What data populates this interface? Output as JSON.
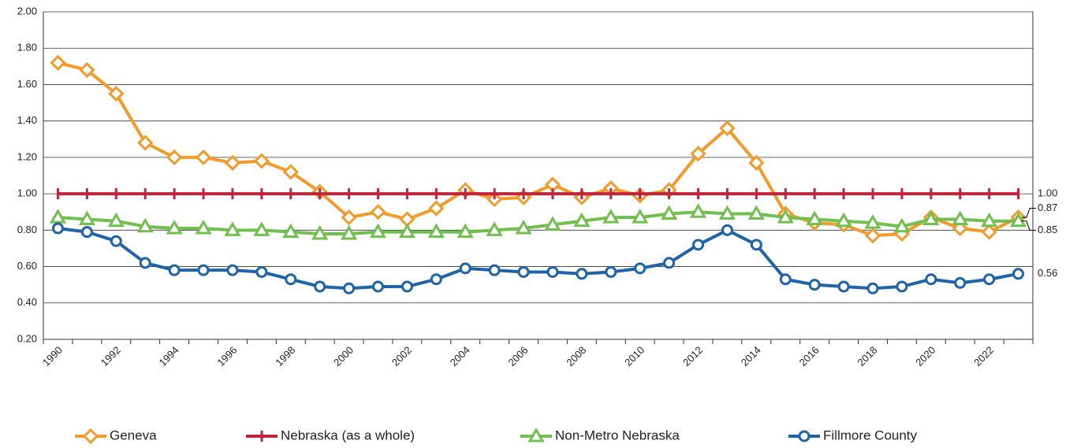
{
  "chart_data": {
    "type": "line",
    "categories": [
      "1990",
      null,
      "1992",
      null,
      "1994",
      null,
      "1996",
      null,
      "1998",
      null,
      "2000",
      null,
      "2002",
      null,
      "2004",
      null,
      "2006",
      null,
      "2008",
      null,
      "2010",
      null,
      "2012",
      null,
      "2014",
      null,
      "2016",
      null,
      "2018",
      null,
      "2020",
      null,
      "2022",
      null
    ],
    "ylim": [
      0.2,
      2.0
    ],
    "yticks": [
      {
        "value": 0.2,
        "label": "0.20"
      },
      {
        "value": 0.4,
        "label": "0.40"
      },
      {
        "value": 0.6,
        "label": "0.60"
      },
      {
        "value": 0.8,
        "label": "0.80"
      },
      {
        "value": 1.0,
        "label": "1.00"
      },
      {
        "value": 1.2,
        "label": "1.20"
      },
      {
        "value": 1.4,
        "label": "1.40"
      },
      {
        "value": 1.6,
        "label": "1.60"
      },
      {
        "value": 1.8,
        "label": "1.80"
      },
      {
        "value": 2.0,
        "label": "2.00"
      }
    ],
    "grid": true,
    "legend": "bottom",
    "series": [
      {
        "name": "Geneva",
        "color": "#f39a2b",
        "marker": "diamond",
        "values": [
          1.72,
          1.68,
          1.55,
          1.28,
          1.2,
          1.2,
          1.17,
          1.18,
          1.12,
          1.01,
          0.87,
          0.9,
          0.86,
          0.92,
          1.02,
          0.97,
          0.98,
          1.05,
          0.98,
          1.03,
          0.99,
          1.02,
          1.22,
          1.36,
          1.17,
          0.89,
          0.84,
          0.83,
          0.77,
          0.78,
          0.87,
          0.81,
          0.79,
          0.87
        ],
        "value_labels": [
          null,
          null,
          null,
          null,
          null,
          null,
          null,
          null,
          null,
          null,
          null,
          null,
          null,
          null,
          null,
          null,
          null,
          null,
          null,
          null,
          null,
          null,
          null,
          null,
          null,
          null,
          null,
          null,
          null,
          null,
          null,
          null,
          null,
          "0.87"
        ]
      },
      {
        "name": "Nebraska (as a whole)",
        "color": "#c0243a",
        "marker": "plus",
        "values": [
          1.0,
          1.0,
          1.0,
          1.0,
          1.0,
          1.0,
          1.0,
          1.0,
          1.0,
          1.0,
          1.0,
          1.0,
          1.0,
          1.0,
          1.0,
          1.0,
          1.0,
          1.0,
          1.0,
          1.0,
          1.0,
          1.0,
          1.0,
          1.0,
          1.0,
          1.0,
          1.0,
          1.0,
          1.0,
          1.0,
          1.0,
          1.0,
          1.0,
          1.0
        ],
        "value_labels": [
          null,
          null,
          null,
          null,
          null,
          null,
          null,
          null,
          null,
          null,
          null,
          null,
          null,
          null,
          null,
          null,
          null,
          null,
          null,
          null,
          null,
          null,
          null,
          null,
          null,
          null,
          null,
          null,
          null,
          null,
          null,
          null,
          null,
          "1.00"
        ]
      },
      {
        "name": "Non-Metro Nebraska",
        "color": "#70bf4f",
        "marker": "triangle",
        "values": [
          0.87,
          0.86,
          0.85,
          0.82,
          0.81,
          0.81,
          0.8,
          0.8,
          0.79,
          0.78,
          0.78,
          0.79,
          0.79,
          0.79,
          0.79,
          0.8,
          0.81,
          0.83,
          0.85,
          0.87,
          0.87,
          0.89,
          0.9,
          0.89,
          0.89,
          0.87,
          0.86,
          0.85,
          0.84,
          0.82,
          0.86,
          0.86,
          0.85,
          0.85
        ],
        "value_labels": [
          null,
          null,
          null,
          null,
          null,
          null,
          null,
          null,
          null,
          null,
          null,
          null,
          null,
          null,
          null,
          null,
          null,
          null,
          null,
          null,
          null,
          null,
          null,
          null,
          null,
          null,
          null,
          null,
          null,
          null,
          null,
          null,
          null,
          "0.85"
        ]
      },
      {
        "name": "Fillmore County",
        "color": "#1f64a8",
        "marker": "circle",
        "values": [
          0.81,
          0.79,
          0.74,
          0.62,
          0.58,
          0.58,
          0.58,
          0.57,
          0.53,
          0.49,
          0.48,
          0.49,
          0.49,
          0.53,
          0.59,
          0.58,
          0.57,
          0.57,
          0.56,
          0.57,
          0.59,
          0.62,
          0.72,
          0.8,
          0.72,
          0.53,
          0.5,
          0.49,
          0.48,
          0.49,
          0.53,
          0.51,
          0.53,
          0.56
        ],
        "value_labels": [
          null,
          null,
          null,
          null,
          null,
          null,
          null,
          null,
          null,
          null,
          null,
          null,
          null,
          null,
          null,
          null,
          null,
          null,
          null,
          null,
          null,
          null,
          null,
          null,
          null,
          null,
          null,
          null,
          null,
          null,
          null,
          null,
          null,
          "0.56"
        ]
      }
    ]
  }
}
